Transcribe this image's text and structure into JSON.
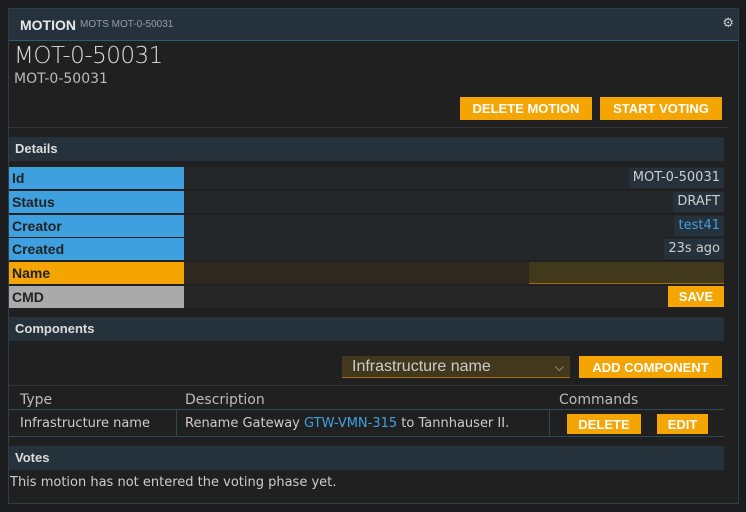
{
  "header": {
    "title": "MOTION",
    "subtitle": "MOTS MOT-0-50031",
    "settings_icon": "gear-icon"
  },
  "motion": {
    "title": "MOT-0-50031",
    "subtitle": "MOT-0-50031"
  },
  "actions": {
    "delete": "DELETE MOTION",
    "start": "START VOTING"
  },
  "details": {
    "heading": "Details",
    "rows": [
      {
        "label": "Id",
        "value": "MOT-0-50031"
      },
      {
        "label": "Status",
        "value": "DRAFT"
      },
      {
        "label": "Creator",
        "value": "test41"
      },
      {
        "label": "Created",
        "value": "23s ago"
      },
      {
        "label": "Name",
        "value": ""
      },
      {
        "label": "CMD",
        "value": ""
      }
    ],
    "save": "SAVE"
  },
  "components": {
    "heading": "Components",
    "select_value": "Infrastructure name",
    "add": "ADD COMPONENT",
    "columns": [
      "Type",
      "Description",
      "Commands"
    ],
    "rows": [
      {
        "type": "Infrastructure name",
        "desc_pre": "Rename Gateway ",
        "desc_link": "GTW-VMN-315",
        "desc_post": " to Tannhauser II.",
        "delete": "DELETE",
        "edit": "EDIT"
      }
    ]
  },
  "votes": {
    "heading": "Votes",
    "text": "This motion has not entered the voting phase yet."
  },
  "colors": {
    "accent": "#f5a500",
    "label_blue": "#3fa0e0",
    "header": "#26323b"
  }
}
